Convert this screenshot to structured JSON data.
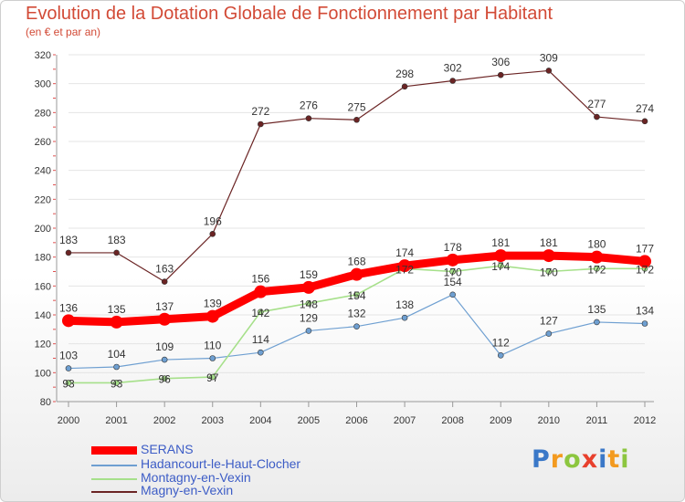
{
  "header": {
    "title": "Evolution de la Dotation Globale de Fonctionnement par Habitant",
    "subtitle": "(en € et par an)"
  },
  "chart_data": {
    "type": "line",
    "title": "Evolution de la Dotation Globale de Fonctionnement par Habitant",
    "subtitle": "(en € et par an)",
    "xlabel": "",
    "ylabel": "",
    "x": [
      "2000",
      "2001",
      "2002",
      "2003",
      "2004",
      "2005",
      "2006",
      "2007",
      "2008",
      "2009",
      "2010",
      "2011",
      "2012"
    ],
    "ylim": [
      80,
      320
    ],
    "yticks": [
      80,
      100,
      120,
      140,
      160,
      180,
      200,
      220,
      240,
      260,
      280,
      300,
      320
    ],
    "grid": "horizontal",
    "legend_position": "bottom-left",
    "series": [
      {
        "name": "SERANS",
        "color": "#ff0000",
        "values": [
          136,
          135,
          137,
          139,
          156,
          159,
          168,
          174,
          178,
          181,
          181,
          180,
          177
        ],
        "labels": [
          "136",
          "135",
          "137",
          "139",
          "156",
          "159",
          "168",
          "174",
          "178",
          "181",
          "181",
          "180",
          "177"
        ]
      },
      {
        "name": "Hadancourt-le-Haut-Clocher",
        "color": "#6e9fd1",
        "values": [
          103,
          104,
          109,
          110,
          114,
          129,
          132,
          138,
          154,
          112,
          127,
          135,
          134
        ],
        "labels": [
          "103",
          "104",
          "109",
          "110",
          "114",
          "129",
          "132",
          "138",
          "154",
          "112",
          "127",
          "135",
          "134"
        ]
      },
      {
        "name": "Montagny-en-Vexin",
        "color": "#a6e08a",
        "values": [
          93,
          93,
          96,
          97,
          142,
          148,
          154,
          172,
          170,
          174,
          170,
          172,
          172
        ],
        "labels": [
          "93",
          "93",
          "96",
          "97",
          "142",
          "148",
          "154",
          "172",
          "170",
          "174",
          "170",
          "172",
          "172"
        ]
      },
      {
        "name": "Magny-en-Vexin",
        "color": "#6b2424",
        "values": [
          183,
          183,
          163,
          196,
          272,
          276,
          275,
          298,
          302,
          306,
          309,
          277,
          274
        ],
        "labels": [
          "183",
          "183",
          "163",
          "196",
          "272",
          "276",
          "275",
          "298",
          "302",
          "306",
          "309",
          "277",
          "274"
        ]
      }
    ]
  },
  "legend": {
    "items": [
      {
        "label": "SERANS",
        "color": "#ff0000"
      },
      {
        "label": "Hadancourt-le-Haut-Clocher",
        "color": "#6e9fd1"
      },
      {
        "label": "Montagny-en-Vexin",
        "color": "#a6e08a"
      },
      {
        "label": "Magny-en-Vexin",
        "color": "#6b2424"
      }
    ]
  },
  "logo": {
    "text": "Proxiti",
    "letters": [
      {
        "ch": "P",
        "color": "#3a78c8"
      },
      {
        "ch": "r",
        "color": "#f39a1f"
      },
      {
        "ch": "o",
        "color": "#8cc63f"
      },
      {
        "ch": "x",
        "color": "#e8402d"
      },
      {
        "ch": "i",
        "color": "#3a78c8"
      },
      {
        "ch": "t",
        "color": "#f39a1f"
      },
      {
        "ch": "i",
        "color": "#8cc63f"
      }
    ]
  }
}
